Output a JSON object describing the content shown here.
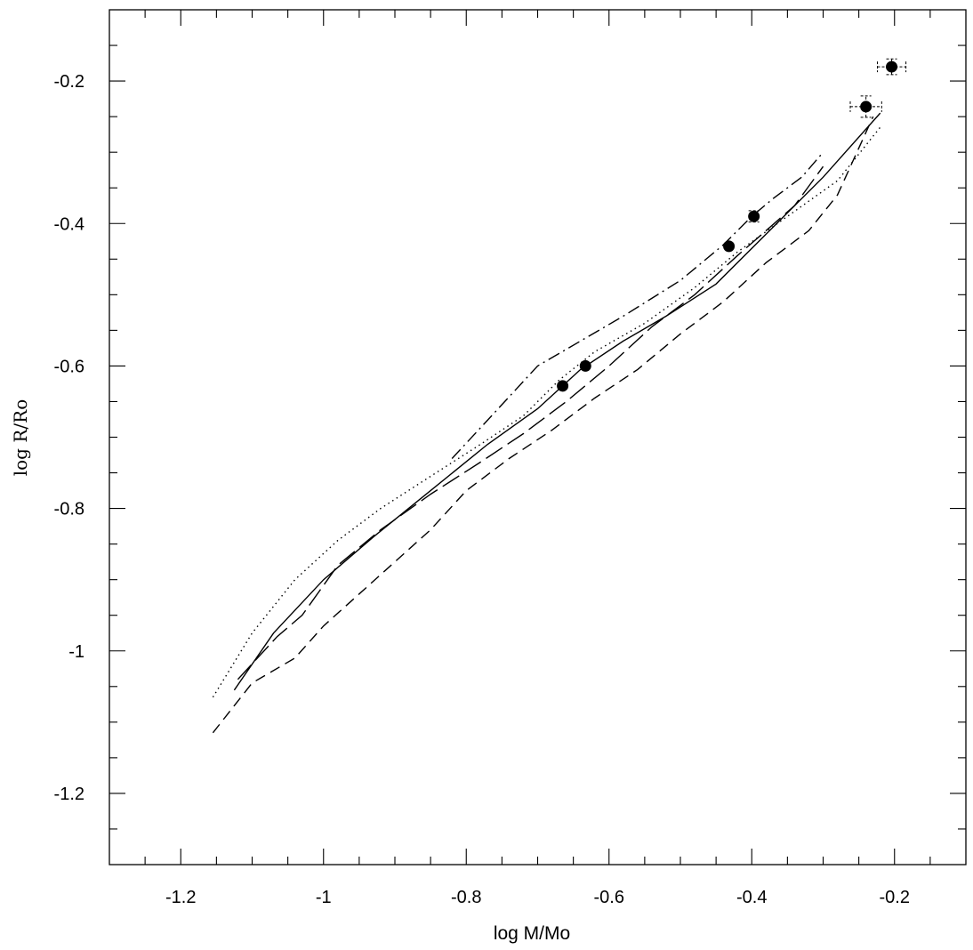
{
  "chart_data": {
    "type": "line",
    "title": "",
    "xlabel": "log M/Mo",
    "ylabel": "log R/Ro",
    "xlim": [
      -1.3,
      -0.1
    ],
    "ylim": [
      -1.3,
      -0.1
    ],
    "grid": false,
    "x_major_ticks": [
      -1.2,
      -1.0,
      -0.8,
      -0.6,
      -0.4,
      -0.2
    ],
    "x_tick_labels": [
      "-1.2",
      "-1",
      "-0.8",
      "-0.6",
      "-0.4",
      "-0.2"
    ],
    "x_minor_step": 0.05,
    "y_major_ticks": [
      -1.2,
      -1.0,
      -0.8,
      -0.6,
      -0.4,
      -0.2
    ],
    "y_tick_labels": [
      "-1.2",
      "-1",
      "-0.8",
      "-0.6",
      "-0.4",
      "-0.2"
    ],
    "y_minor_step": 0.05,
    "series": [
      {
        "style": "solid",
        "x": [
          -1.125,
          -1.07,
          -1.0,
          -0.93,
          -0.85,
          -0.77,
          -0.7,
          -0.64,
          -0.58,
          -0.52,
          -0.45,
          -0.38,
          -0.3,
          -0.22
        ],
        "y": [
          -1.055,
          -0.975,
          -0.9,
          -0.84,
          -0.775,
          -0.71,
          -0.66,
          -0.605,
          -0.565,
          -0.53,
          -0.485,
          -0.415,
          -0.335,
          -0.245
        ]
      },
      {
        "style": "dotted",
        "x": [
          -1.155,
          -1.1,
          -1.04,
          -0.98,
          -0.92,
          -0.85,
          -0.78,
          -0.72,
          -0.67,
          -0.62,
          -0.55,
          -0.48,
          -0.42,
          -0.35,
          -0.28,
          -0.22
        ],
        "y": [
          -1.065,
          -0.975,
          -0.9,
          -0.845,
          -0.8,
          -0.755,
          -0.71,
          -0.67,
          -0.62,
          -0.58,
          -0.54,
          -0.49,
          -0.44,
          -0.39,
          -0.34,
          -0.265
        ]
      },
      {
        "style": "dashed",
        "x": [
          -1.155,
          -1.1,
          -1.04,
          -1.0,
          -0.95,
          -0.9,
          -0.85,
          -0.8,
          -0.74,
          -0.68,
          -0.62,
          -0.56,
          -0.5,
          -0.44,
          -0.38,
          -0.32,
          -0.28,
          -0.23
        ],
        "y": [
          -1.115,
          -1.045,
          -1.01,
          -0.965,
          -0.92,
          -0.875,
          -0.83,
          -0.775,
          -0.73,
          -0.69,
          -0.645,
          -0.605,
          -0.555,
          -0.51,
          -0.455,
          -0.41,
          -0.36,
          -0.25
        ]
      },
      {
        "style": "long-dash",
        "x": [
          -1.12,
          -1.065,
          -1.03,
          -0.98,
          -0.92,
          -0.85,
          -0.78,
          -0.72,
          -0.66,
          -0.6,
          -0.54,
          -0.48,
          -0.42,
          -0.38,
          -0.34,
          -0.3
        ],
        "y": [
          -1.04,
          -0.98,
          -0.95,
          -0.88,
          -0.83,
          -0.78,
          -0.735,
          -0.695,
          -0.65,
          -0.6,
          -0.545,
          -0.5,
          -0.445,
          -0.41,
          -0.375,
          -0.32
        ]
      },
      {
        "style": "dash-dot",
        "x": [
          -0.82,
          -0.76,
          -0.7,
          -0.64,
          -0.58,
          -0.5,
          -0.44,
          -0.4,
          -0.37,
          -0.33,
          -0.3
        ],
        "y": [
          -0.73,
          -0.665,
          -0.6,
          -0.565,
          -0.53,
          -0.48,
          -0.43,
          -0.39,
          -0.365,
          -0.335,
          -0.3
        ]
      }
    ],
    "points": [
      {
        "x": -0.665,
        "y": -0.628
      },
      {
        "x": -0.633,
        "y": -0.6
      },
      {
        "x": -0.432,
        "y": -0.432
      },
      {
        "x": -0.397,
        "y": -0.39,
        "yerr": 0.008
      },
      {
        "x": -0.24,
        "y": -0.236,
        "xerr": 0.022,
        "yerr": 0.015
      },
      {
        "x": -0.204,
        "y": -0.18,
        "xerr": 0.02,
        "yerr": 0.011
      }
    ]
  }
}
